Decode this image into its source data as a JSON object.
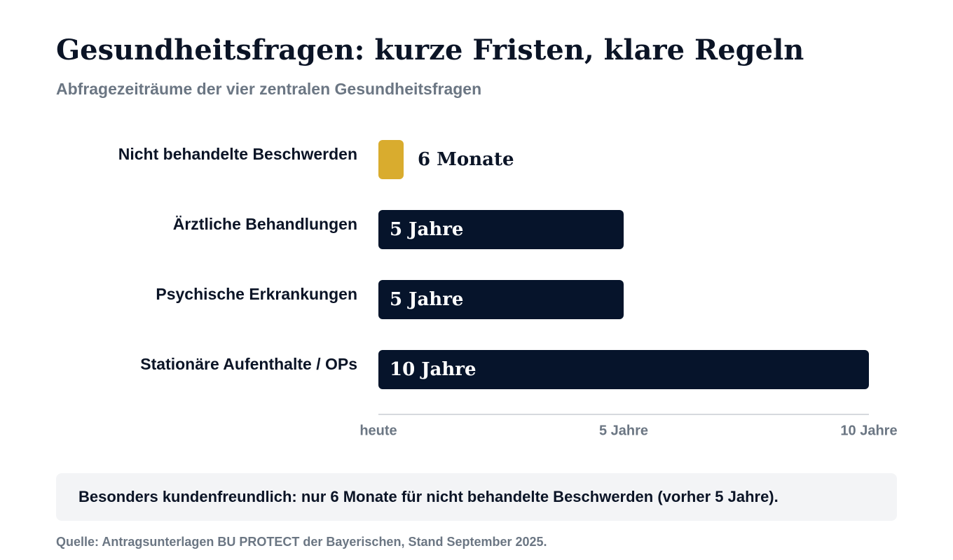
{
  "chart_data": {
    "type": "bar",
    "orientation": "horizontal",
    "title": "Gesundheitsfragen: kurze Fristen, klare Regeln",
    "subtitle": "Abfragezeiträume der vier zentralen Gesundheitsfragen",
    "categories": [
      "Nicht behandelte Beschwerden",
      "Ärztliche Behandlungen",
      "Psychische Erkrankungen",
      "Stationäre Aufenthalte / OPs"
    ],
    "values": [
      0.5,
      5,
      5,
      10
    ],
    "value_labels": [
      "6 Monate",
      "5 Jahre",
      "5 Jahre",
      "10 Jahre"
    ],
    "bar_colors": [
      "#d9ac2e",
      "#06142b",
      "#06142b",
      "#06142b"
    ],
    "xlim": [
      0,
      10
    ],
    "ticks": [
      {
        "value": 0,
        "label": "heute"
      },
      {
        "value": 5,
        "label": "5 Jahre"
      },
      {
        "value": 10,
        "label": "10 Jahre"
      }
    ],
    "grid": false,
    "legend": "none"
  },
  "callout": {
    "text": "Besonders kundenfreundlich: nur 6 Monate für nicht behandelte Beschwerden (vorher 5 Jahre)."
  },
  "source": "Quelle: Antragsunterlagen BU PROTECT der Bayerischen, Stand September 2025.",
  "colors": {
    "accent": "#d9ac2e",
    "bar": "#06142b",
    "muted_text": "#6b7683",
    "axis": "#d6d9de",
    "callout_bg": "#f3f4f6"
  }
}
